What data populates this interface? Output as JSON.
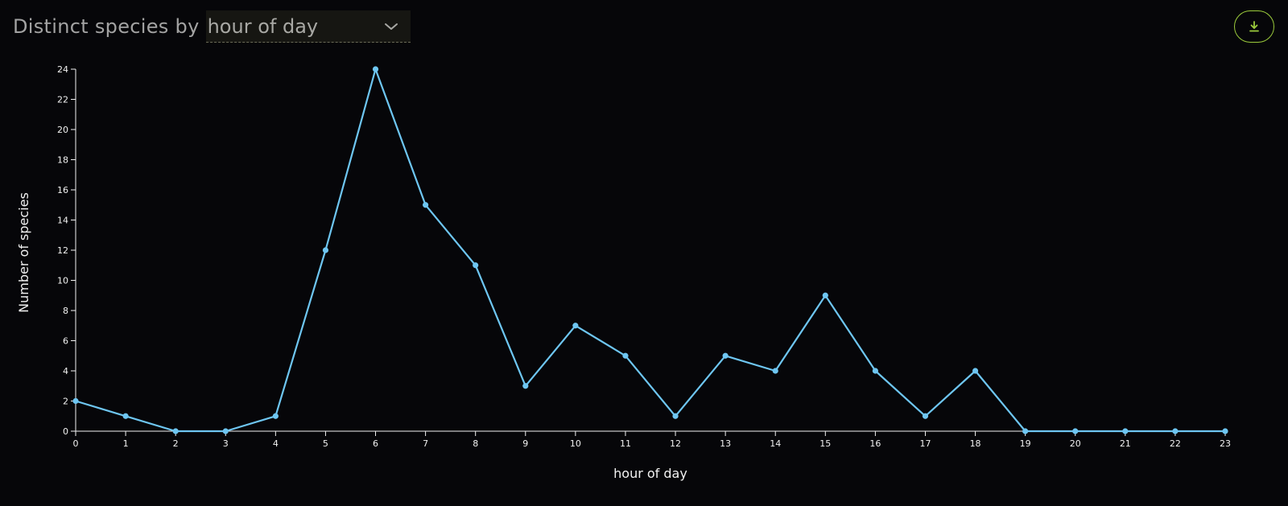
{
  "header": {
    "title_prefix": "Distinct species by",
    "dropdown_value": "hour of day"
  },
  "colors": {
    "line": "#6ec6f2",
    "axis": "#f2f2f2",
    "accent": "#9ccc3c"
  },
  "icons": {
    "dropdown": "chevron-down-icon",
    "download": "download-icon"
  },
  "chart_data": {
    "type": "line",
    "xlabel": "hour of day",
    "ylabel": "Number of species",
    "x": [
      0,
      1,
      2,
      3,
      4,
      5,
      6,
      7,
      8,
      9,
      10,
      11,
      12,
      13,
      14,
      15,
      16,
      17,
      18,
      19,
      20,
      21,
      22,
      23
    ],
    "values": [
      2,
      1,
      0,
      0,
      1,
      12,
      24,
      15,
      11,
      3,
      7,
      5,
      1,
      5,
      4,
      9,
      4,
      1,
      4,
      0,
      0,
      0,
      0,
      0
    ],
    "xlim": [
      0,
      23
    ],
    "ylim": [
      0,
      24
    ],
    "yticks": [
      0,
      2,
      4,
      6,
      8,
      10,
      12,
      14,
      16,
      18,
      20,
      22,
      24
    ],
    "grid": false,
    "markers": true
  }
}
